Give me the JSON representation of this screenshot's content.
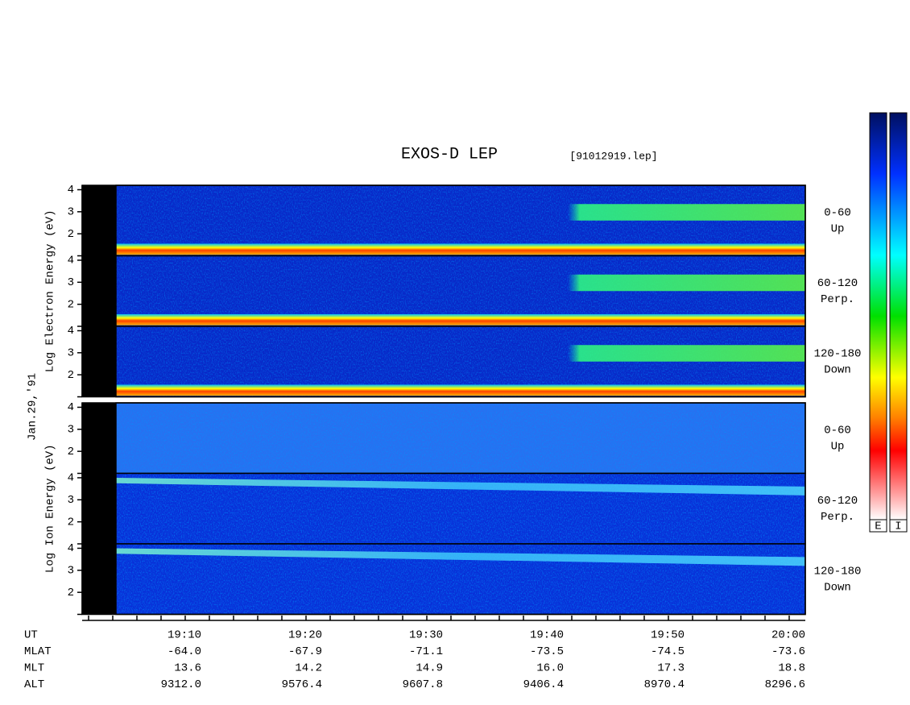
{
  "chart_data": {
    "type": "spectrogram",
    "title": "EXOS-D LEP",
    "subtitle": "[91012919.lep]",
    "date": "Jan.29,'91",
    "ylim": [
      1,
      4.2
    ],
    "yticks": [
      2,
      3,
      4
    ],
    "groups": [
      {
        "ylabel": "Log Electron Energy (eV)",
        "colorbar": "E",
        "kind": "electron",
        "panels": [
          {
            "angle": "0-60",
            "direction": "Up"
          },
          {
            "angle": "60-120",
            "direction": "Perp."
          },
          {
            "angle": "120-180",
            "direction": "Down"
          }
        ]
      },
      {
        "ylabel": "Log Ion Energy (eV)",
        "colorbar": "I",
        "kind": "ion",
        "panels": [
          {
            "angle": "0-60",
            "direction": "Up"
          },
          {
            "angle": "60-120",
            "direction": "Perp."
          },
          {
            "angle": "120-180",
            "direction": "Down"
          }
        ]
      }
    ],
    "ephemeris": [
      {
        "label": "UT",
        "values": [
          "19:10",
          "19:20",
          "19:30",
          "19:40",
          "19:50",
          "20:00"
        ]
      },
      {
        "label": "MLAT",
        "values": [
          "-64.0",
          "-67.9",
          "-71.1",
          "-73.5",
          "-74.5",
          "-73.6"
        ]
      },
      {
        "label": "MLT",
        "values": [
          "13.6",
          "14.2",
          "14.9",
          "16.0",
          "17.3",
          "18.8"
        ]
      },
      {
        "label": "ALT",
        "values": [
          "9312.0",
          "9576.4",
          "9607.8",
          "9406.4",
          "8970.4",
          "8296.6"
        ]
      }
    ]
  }
}
